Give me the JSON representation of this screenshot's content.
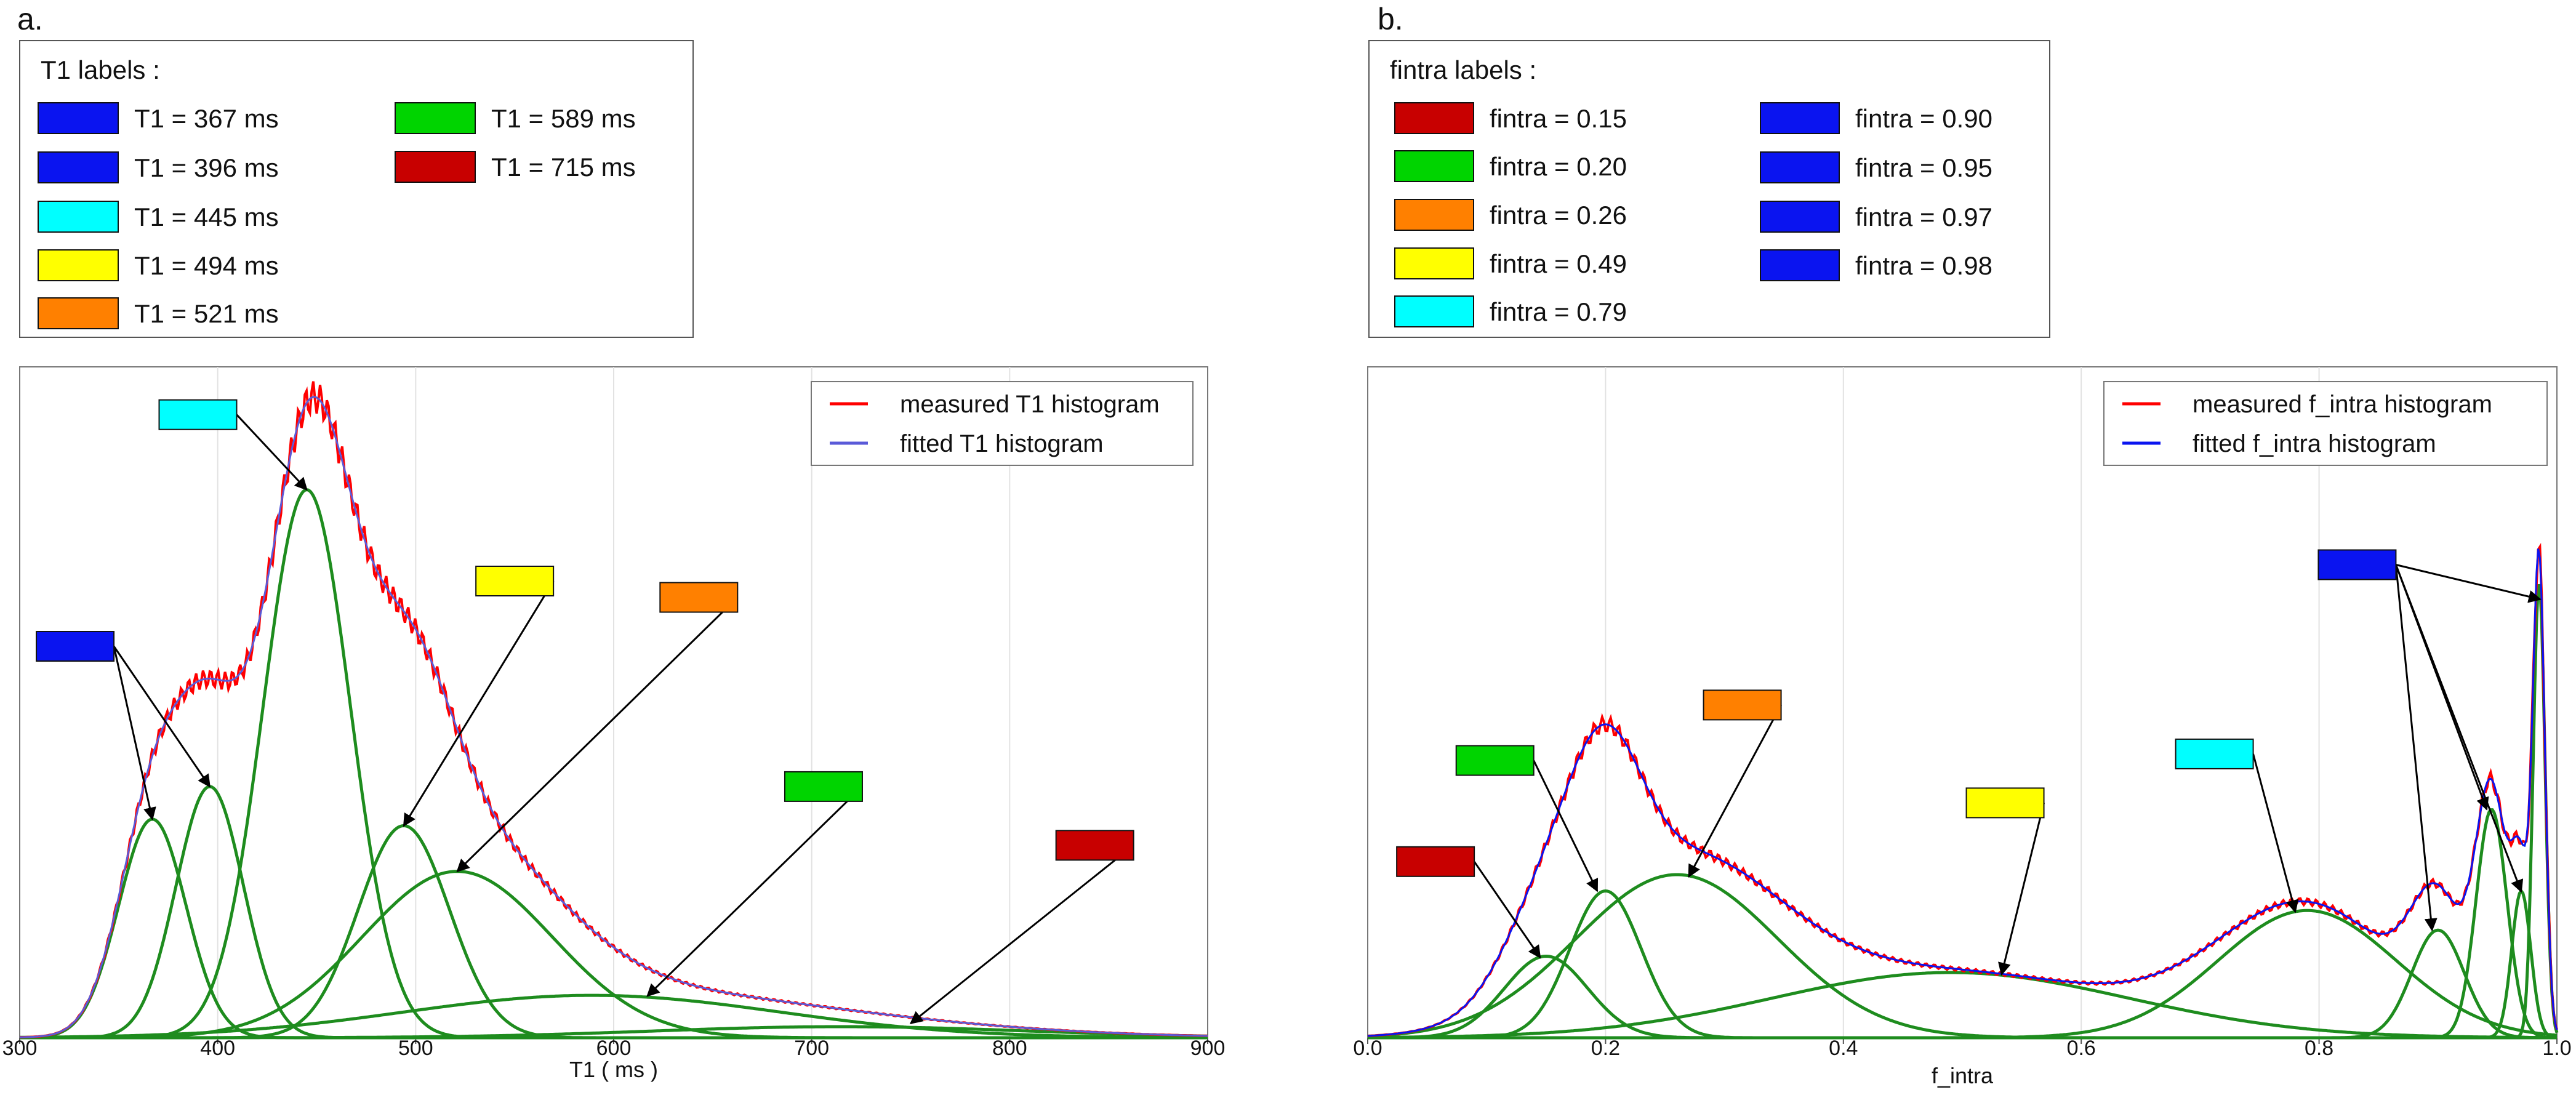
{
  "chart_data": [
    {
      "type": "line",
      "panel_label": "a.",
      "title": "",
      "xlabel": "T1 ( ms )",
      "ylabel": "",
      "xlim": [
        300,
        900
      ],
      "ylim": [
        0,
        1.0
      ],
      "xticks": [
        300,
        400,
        500,
        600,
        700,
        800,
        900
      ],
      "xtick_labels": [
        "300",
        "400",
        "500",
        "600",
        "700",
        "800",
        "900"
      ],
      "grid": "vertical",
      "legend_placement": "top-right",
      "legend": [
        {
          "name": "measured T1 histogram",
          "color": "#ff0000"
        },
        {
          "name": "fitted T1 histogram",
          "color": "#5a5ad8"
        }
      ],
      "labels_box": {
        "title": "T1 labels :",
        "entries": [
          {
            "text": "T1 = 367 ms",
            "color": "#0a14f0"
          },
          {
            "text": "T1 = 396 ms",
            "color": "#0a14f0"
          },
          {
            "text": "T1 = 445 ms",
            "color": "#00ffff"
          },
          {
            "text": "T1 = 494 ms",
            "color": "#ffff00"
          },
          {
            "text": "T1 = 521 ms",
            "color": "#ff8000"
          },
          {
            "text": "T1 = 589 ms",
            "color": "#00d400"
          },
          {
            "text": "T1 = 715 ms",
            "color": "#c80000"
          }
        ]
      },
      "components": [
        {
          "mean": 367,
          "sd": 17,
          "amp": 0.335,
          "color": "#0a14f0"
        },
        {
          "mean": 396,
          "sd": 17,
          "amp": 0.385,
          "color": "#0a14f0"
        },
        {
          "mean": 445,
          "sd": 22,
          "amp": 0.84,
          "color": "#00ffff"
        },
        {
          "mean": 494,
          "sd": 23,
          "amp": 0.325,
          "color": "#ffff00"
        },
        {
          "mean": 521,
          "sd": 48,
          "amp": 0.255,
          "color": "#ff8000"
        },
        {
          "mean": 589,
          "sd": 95,
          "amp": 0.065,
          "color": "#00d400"
        },
        {
          "mean": 715,
          "sd": 95,
          "amp": 0.017,
          "color": "#c80000"
        }
      ],
      "component_color": "#1e8c1e",
      "annotations": [
        {
          "color": "#0a14f0",
          "box": [
            328,
            438
          ],
          "targets": [
            [
              367,
              0.335
            ],
            [
              396,
              0.385
            ]
          ]
        },
        {
          "color": "#00ffff",
          "box": [
            390,
            0.955
          ],
          "targets": [
            [
              445,
              0.84
            ]
          ]
        },
        {
          "color": "#ffff00",
          "box": [
            550,
            0.7
          ],
          "targets": [
            [
              494,
              0.325
            ]
          ]
        },
        {
          "color": "#ff8000",
          "box": [
            643,
            0.675
          ],
          "targets": [
            [
              521,
              0.255
            ]
          ]
        },
        {
          "color": "#00d400",
          "box": [
            706,
            0.385
          ],
          "targets": [
            [
              617,
              0.064
            ]
          ]
        },
        {
          "color": "#c80000",
          "box": [
            843,
            0.295
          ],
          "targets": [
            [
              750,
              0.022
            ]
          ]
        }
      ]
    },
    {
      "type": "line",
      "panel_label": "b.",
      "title": "",
      "xlabel": "f_intra",
      "ylabel": "",
      "xlim": [
        0.0,
        1.0
      ],
      "ylim": [
        0,
        1.0
      ],
      "xticks": [
        0.0,
        0.2,
        0.4,
        0.6,
        0.8,
        1.0
      ],
      "xtick_labels": [
        "0.0",
        "0.2",
        "0.4",
        "0.6",
        "0.8",
        "1.0"
      ],
      "grid": "vertical",
      "legend_placement": "top-right",
      "legend": [
        {
          "name": "measured f_intra histogram",
          "color": "#ff0000"
        },
        {
          "name": "fitted f_intra histogram",
          "color": "#0a14f0"
        }
      ],
      "labels_box": {
        "title": "fintra labels :",
        "entries": [
          {
            "text": "fintra = 0.15",
            "color": "#c80000"
          },
          {
            "text": "fintra = 0.20",
            "color": "#00d400"
          },
          {
            "text": "fintra = 0.26",
            "color": "#ff8000"
          },
          {
            "text": "fintra = 0.49",
            "color": "#ffff00"
          },
          {
            "text": "fintra = 0.79",
            "color": "#00ffff"
          },
          {
            "text": "fintra = 0.90",
            "color": "#0a14f0"
          },
          {
            "text": "fintra = 0.95",
            "color": "#0a14f0"
          },
          {
            "text": "fintra = 0.97",
            "color": "#0a14f0"
          },
          {
            "text": "fintra = 0.98",
            "color": "#0a14f0"
          }
        ]
      },
      "components": [
        {
          "mean": 0.15,
          "sd": 0.035,
          "amp": 0.125,
          "color": "#c80000"
        },
        {
          "mean": 0.2,
          "sd": 0.03,
          "amp": 0.225,
          "color": "#00d400"
        },
        {
          "mean": 0.26,
          "sd": 0.085,
          "amp": 0.25,
          "color": "#ff8000"
        },
        {
          "mean": 0.49,
          "sd": 0.15,
          "amp": 0.1,
          "color": "#ffff00"
        },
        {
          "mean": 0.79,
          "sd": 0.075,
          "amp": 0.195,
          "color": "#00ffff"
        },
        {
          "mean": 0.9,
          "sd": 0.022,
          "amp": 0.165,
          "color": "#0a14f0"
        },
        {
          "mean": 0.945,
          "sd": 0.013,
          "amp": 0.35,
          "color": "#0a14f0"
        },
        {
          "mean": 0.97,
          "sd": 0.008,
          "amp": 0.225,
          "color": "#0a14f0"
        },
        {
          "mean": 0.985,
          "sd": 0.005,
          "amp": 0.7,
          "color": "#0a14f0"
        }
      ],
      "component_color": "#1e8c1e",
      "annotations": [
        {
          "color": "#c80000",
          "box": [
            0.057,
            0.27
          ],
          "targets": [
            [
              0.145,
              0.123
            ]
          ]
        },
        {
          "color": "#00d400",
          "box": [
            0.107,
            0.425
          ],
          "targets": [
            [
              0.193,
              0.225
            ]
          ]
        },
        {
          "color": "#ff8000",
          "box": [
            0.315,
            0.51
          ],
          "targets": [
            [
              0.27,
              0.247
            ]
          ]
        },
        {
          "color": "#ffff00",
          "box": [
            0.536,
            0.36
          ],
          "targets": [
            [
              0.533,
              0.097
            ]
          ]
        },
        {
          "color": "#00ffff",
          "box": [
            0.712,
            0.435
          ],
          "targets": [
            [
              0.78,
              0.193
            ]
          ]
        },
        {
          "color": "#0a14f0",
          "box": [
            0.832,
            0.725
          ],
          "targets": [
            [
              0.895,
              0.165
            ],
            [
              0.941,
              0.35
            ],
            [
              0.97,
              0.224
            ],
            [
              0.986,
              0.672
            ]
          ]
        }
      ]
    }
  ]
}
